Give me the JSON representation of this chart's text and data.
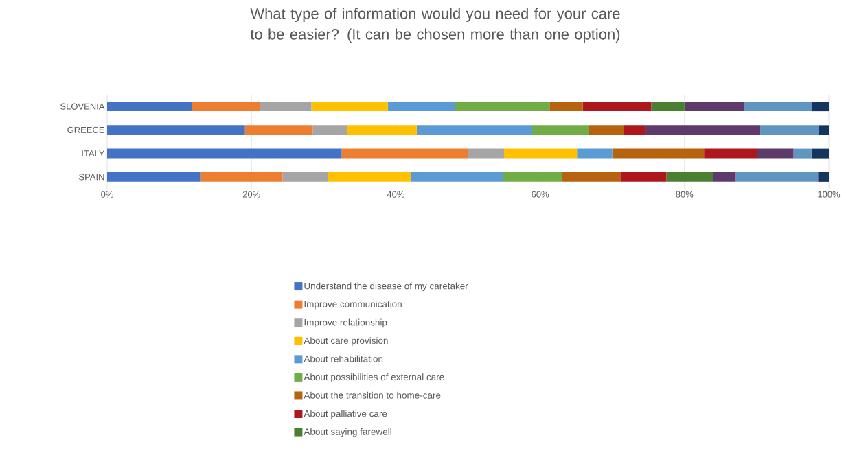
{
  "chart_data": {
    "type": "bar",
    "orientation": "horizontal",
    "stacked": true,
    "title": "What type of information would you need for your care to be easier? (It can be chosen more than one option)",
    "categories": [
      "SLOVENIA",
      "GREECE",
      "ITALY",
      "SPAIN"
    ],
    "series": [
      {
        "name": "Understand the disease of my caretaker",
        "color": "#4472c4",
        "values": [
          11.8,
          19.1,
          32.5,
          12.9
        ]
      },
      {
        "name": "Improve communication",
        "color": "#ed7d31",
        "values": [
          9.4,
          9.4,
          17.5,
          11.4
        ]
      },
      {
        "name": "Improve relationship",
        "color": "#a5a5a5",
        "values": [
          7.1,
          4.8,
          5.0,
          6.3
        ]
      },
      {
        "name": "About care provision",
        "color": "#ffc000",
        "values": [
          10.6,
          9.6,
          10.1,
          11.5
        ]
      },
      {
        "name": "About rehabilitation",
        "color": "#5b9bd5",
        "values": [
          9.3,
          15.9,
          4.9,
          12.8
        ]
      },
      {
        "name": "About possibilities of external care",
        "color": "#70ad47",
        "values": [
          13.1,
          7.9,
          0,
          8.1
        ]
      },
      {
        "name": "About the transition to home-care",
        "color": "#b6620e",
        "values": [
          4.6,
          4.9,
          12.7,
          8.1
        ]
      },
      {
        "name": "About palliative care",
        "color": "#ad171d",
        "values": [
          9.5,
          3.0,
          7.4,
          6.4
        ]
      },
      {
        "name": "About saying farewell",
        "color": "#4a7f31",
        "values": [
          4.6,
          0,
          0,
          6.5
        ]
      },
      {
        "color": "#5e3a6b",
        "values": [
          8.3,
          15.9,
          5.0,
          3.1
        ]
      },
      {
        "color": "#5f95c0",
        "values": [
          9.4,
          8.1,
          2.5,
          11.4
        ]
      },
      {
        "color": "#13355e",
        "values": [
          2.3,
          1.4,
          2.4,
          1.5
        ]
      }
    ],
    "xlim": [
      0,
      100
    ],
    "xticks": [
      {
        "value": 0,
        "label": "0%"
      },
      {
        "value": 20,
        "label": "20%"
      },
      {
        "value": 40,
        "label": "40%"
      },
      {
        "value": 60,
        "label": "60%"
      },
      {
        "value": 80,
        "label": "80%"
      },
      {
        "value": 100,
        "label": "100%"
      }
    ],
    "grid": "x",
    "legend": "bottom"
  }
}
